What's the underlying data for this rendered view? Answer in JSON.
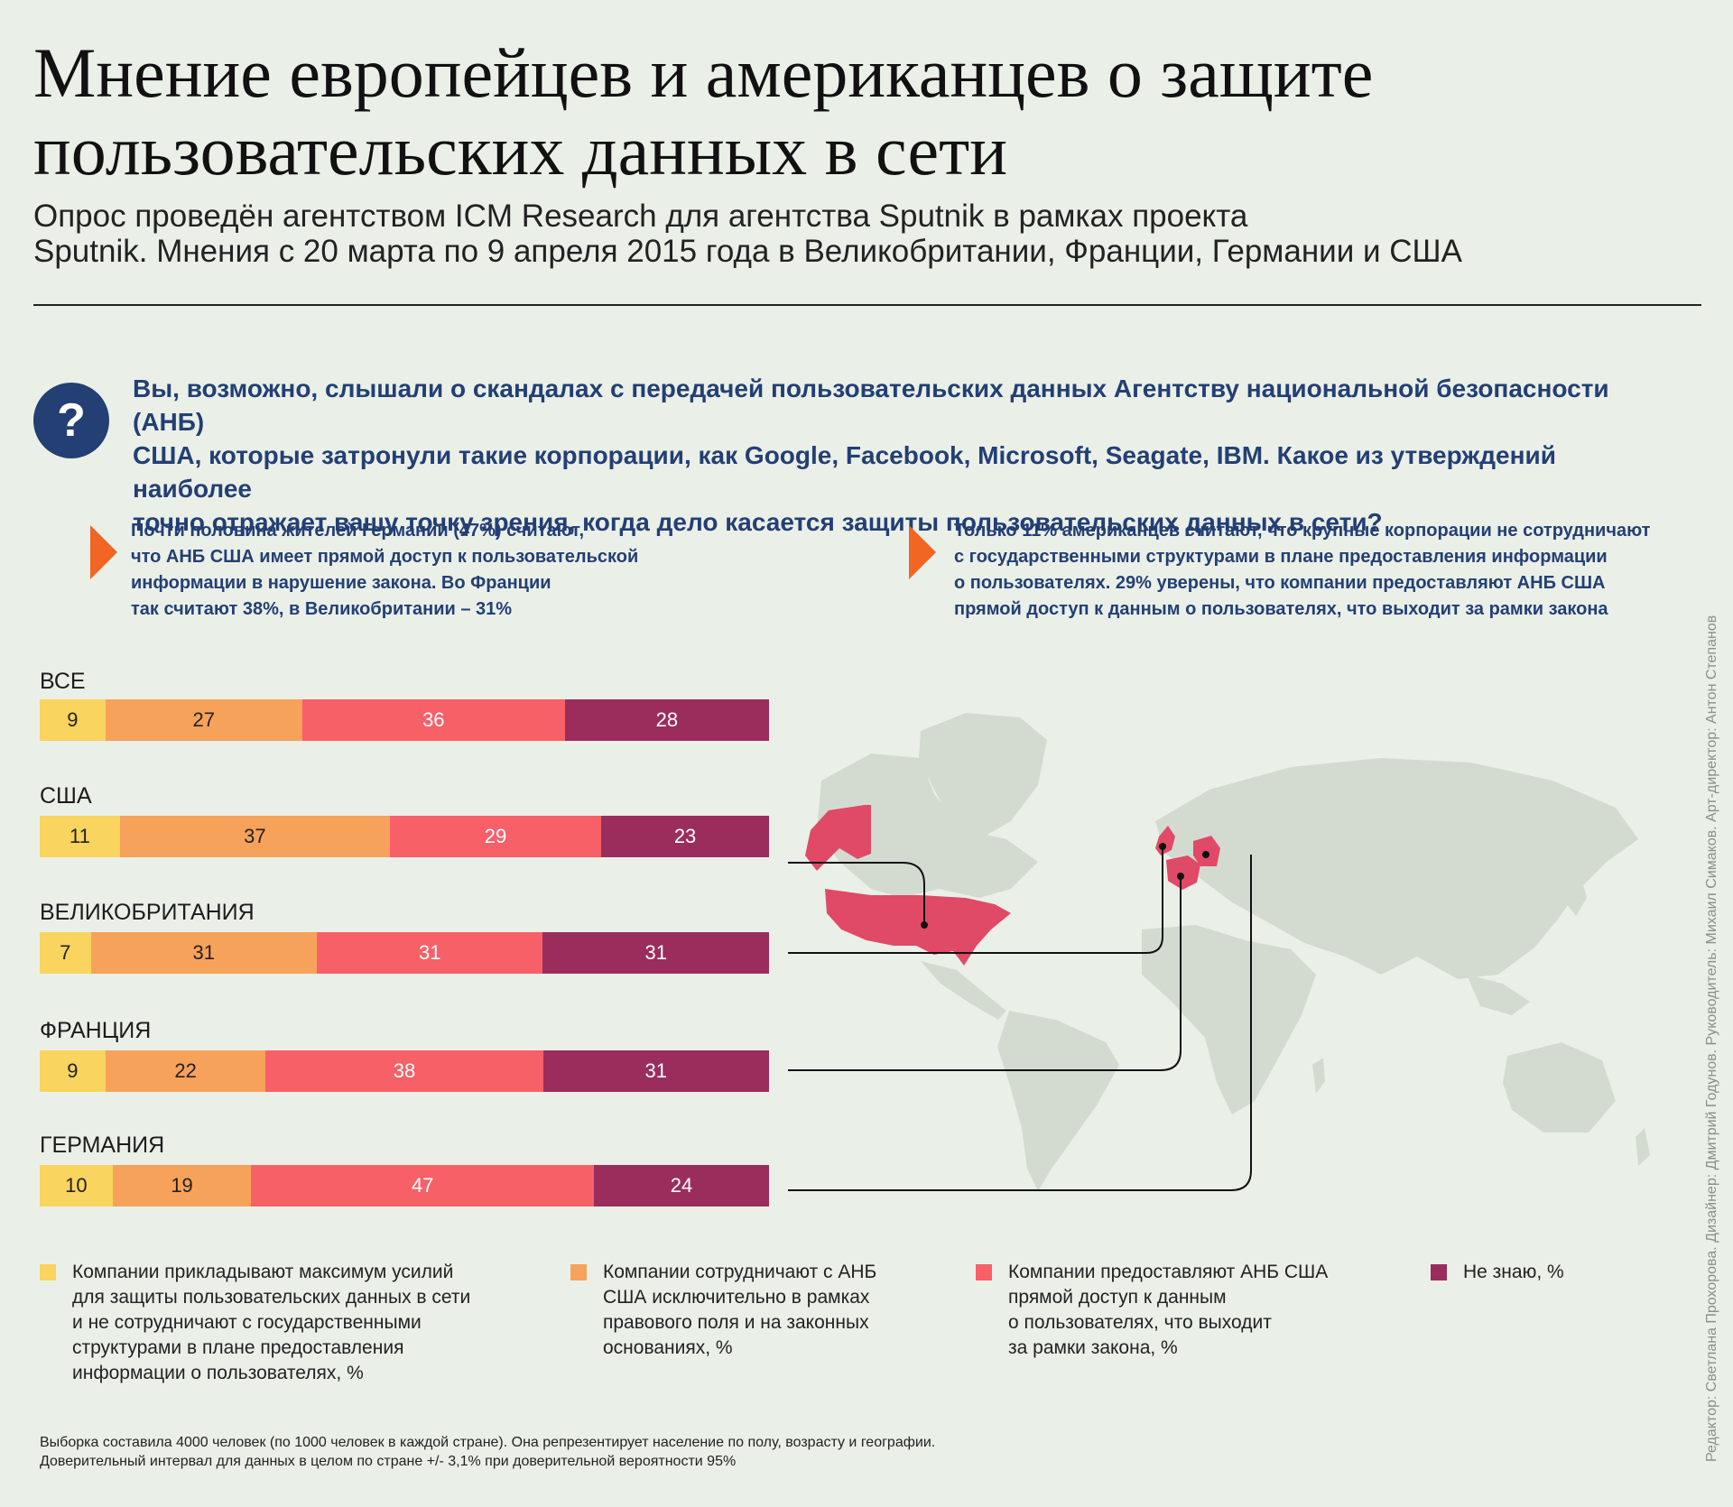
{
  "header": {
    "title_line1": "Мнение европейцев и американцев о защите",
    "title_line2": "пользовательских данных в сети",
    "subtitle_line1": "Опрос проведён агентством ICM Research для агентства Sputnik в рамках проекта",
    "subtitle_line2": "Sputnik. Мнения с 20 марта по 9 апреля 2015 года в Великобритании, Франции, Германии и США"
  },
  "question": {
    "icon": "question-mark-icon",
    "icon_glyph": "?",
    "line1": "Вы, возможно, слышали о скандалах с передачей пользовательских данных Агентству национальной безопасности (АНБ)",
    "line2": "США, которые затронули такие корпорации, как Google, Facebook, Microsoft, Seagate, IBM. Какое из утверждений наиболее",
    "line3": "точно отражает вашу точку зрения, когда дело касается защиты пользовательских данных в сети?"
  },
  "notes": [
    {
      "lines": [
        "Почти половина жителей Германии (47%) считают,",
        "что АНБ США имеет прямой доступ к пользовательской",
        "информации в нарушение закона. Во Франции",
        "так считают 38%, в Великобритании – 31%"
      ]
    },
    {
      "lines": [
        "Только 11% американцев считают, что крупные корпорации не сотрудничают",
        "с государственными структурами в плане предоставления информации",
        "о пользователях. 29% уверены, что компании предоставляют АНБ США",
        "прямой доступ к данным о пользователях, что выходит за рамки закона"
      ]
    }
  ],
  "chart_data": {
    "type": "bar",
    "orientation": "horizontal-stacked-100",
    "categories": [
      "ВСЕ",
      "США",
      "ВЕЛИКОБРИТАНИЯ",
      "ФРАНЦИЯ",
      "ГЕРМАНИЯ"
    ],
    "series": [
      {
        "name": "Компании прикладывают максимум усилий для защиты пользовательских данных в сети и не сотрудничают с государственными структурами в плане предоставления информации о пользователях, %",
        "color": "#f9d45e",
        "values": [
          9,
          11,
          7,
          9,
          10
        ]
      },
      {
        "name": "Компании сотрудничают с АНБ США исключительно в рамках правового поля и на законных основаниях, %",
        "color": "#f7a25a",
        "values": [
          27,
          37,
          31,
          22,
          19
        ]
      },
      {
        "name": "Компании предоставляют АНБ США прямой доступ к данным о пользователях, что выходит за рамки закона, %",
        "color": "#f86068",
        "values": [
          36,
          29,
          31,
          38,
          47
        ]
      },
      {
        "name": "Не знаю, %",
        "color": "#9b2d5d",
        "values": [
          28,
          23,
          31,
          31,
          24
        ]
      }
    ],
    "legend_placement": "bottom"
  },
  "legend": [
    {
      "lines": [
        "Компании прикладывают максимум усилий",
        "для защиты пользовательских данных в сети",
        "и не сотрудничают с государственными",
        "структурами в плане предоставления",
        "информации о пользователях, %"
      ],
      "color": "#f9d45e"
    },
    {
      "lines": [
        "Компании сотрудничают с АНБ",
        "США исключительно в рамках",
        "правового поля и на законных",
        "основаниях, %"
      ],
      "color": "#f7a25a"
    },
    {
      "lines": [
        "Компании предоставляют АНБ США",
        "прямой доступ к данным",
        "о пользователях, что выходит",
        "за рамки закона, %"
      ],
      "color": "#f86068"
    },
    {
      "lines": [
        "Не знаю, %"
      ],
      "color": "#9b2d5d"
    }
  ],
  "footnote": {
    "line1": "Выборка составила 4000 человек (по 1000 человек в каждой стране). Она репрезентирует население по полу, возрасту и географии.",
    "line2": "Доверительный интервал для данных в целом по стране +/- 3,1% при доверительной вероятности 95%"
  },
  "credits": "Редактор: Светлана Прохорова. Дизайнер: Дмитрий Годунов. Руководитель: Михаил Симаков. Арт-директор: Антон Степанов",
  "map": {
    "highlight_color": "#e04a66",
    "land_color": "#d3dbd1"
  }
}
